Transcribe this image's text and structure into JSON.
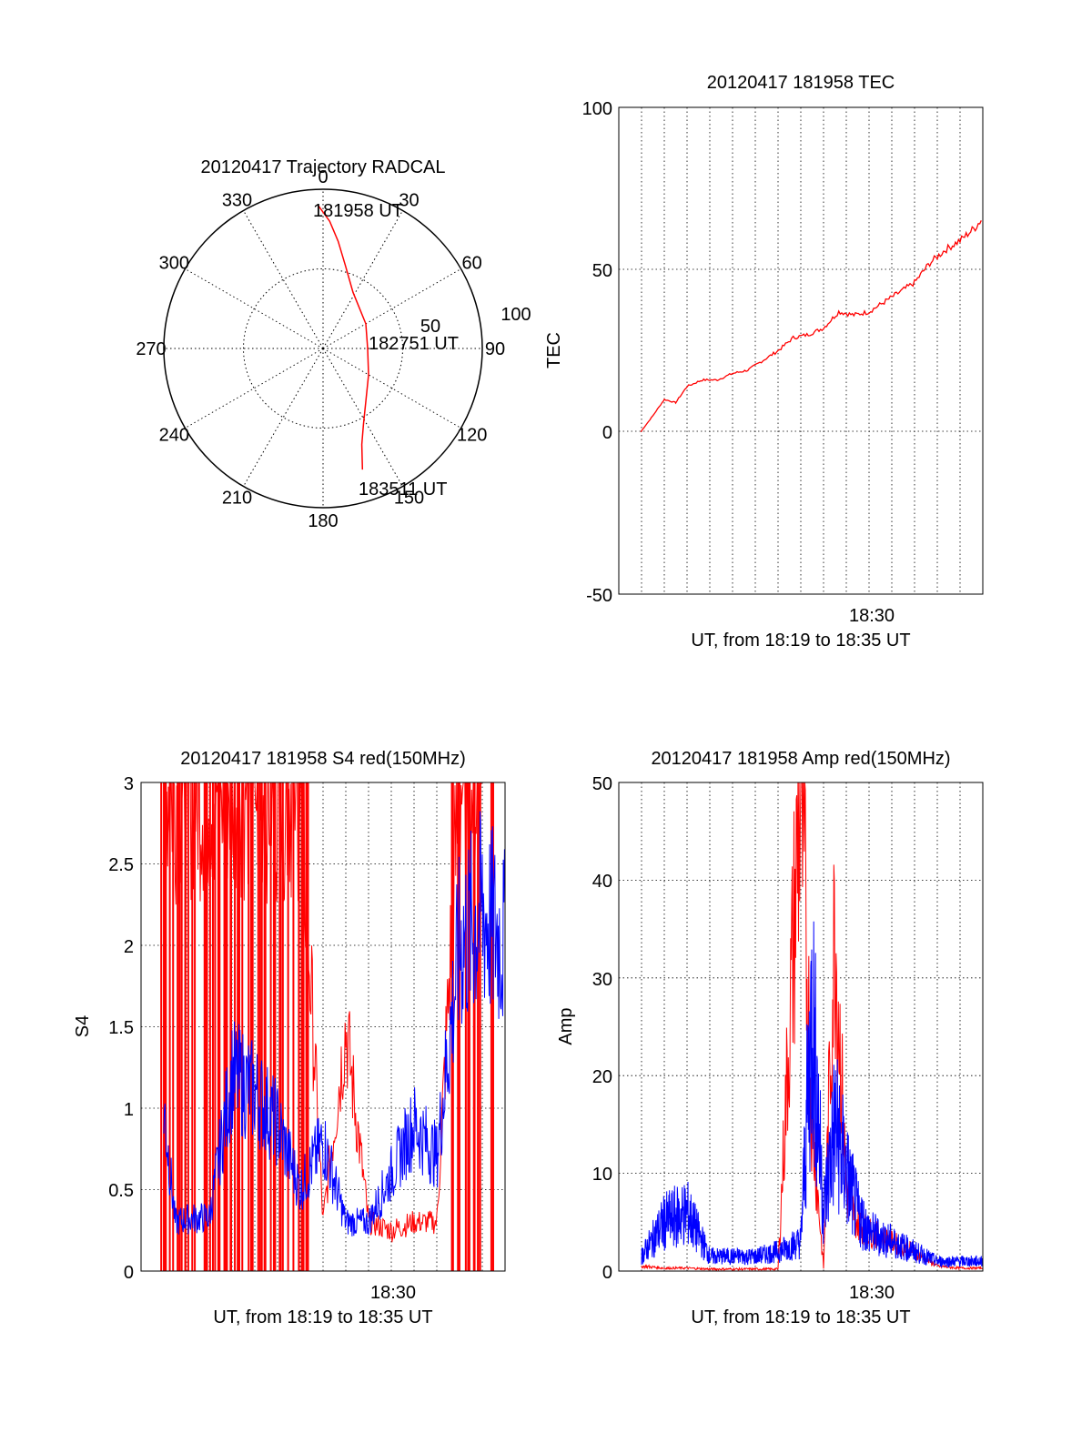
{
  "chart_data": [
    {
      "type": "polar",
      "title": "20120417 Trajectory RADCAL",
      "angle_tick_labels": [
        "0",
        "30",
        "60",
        "90",
        "120",
        "150",
        "180",
        "210",
        "240",
        "270",
        "300",
        "330"
      ],
      "radius_tick_labels": [
        "50",
        "100"
      ],
      "rlim": [
        0,
        100
      ],
      "grid": true,
      "series": [
        {
          "color": "#ff0000",
          "points": [
            {
              "az": -2,
              "r": 90
            },
            {
              "az": 3,
              "r": 80
            },
            {
              "az": 8,
              "r": 68
            },
            {
              "az": 15,
              "r": 54
            },
            {
              "az": 28,
              "r": 40
            },
            {
              "az": 60,
              "r": 31
            },
            {
              "az": 90,
              "r": 28
            },
            {
              "az": 120,
              "r": 33
            },
            {
              "az": 140,
              "r": 42
            },
            {
              "az": 152,
              "r": 54
            },
            {
              "az": 158,
              "r": 65
            },
            {
              "az": 162,
              "r": 80
            }
          ]
        }
      ],
      "annotations": [
        "181958 UT",
        "182751 UT",
        "183511 UT"
      ]
    },
    {
      "type": "line",
      "title": "20120417 181958 TEC",
      "xlabel": "UT, from 18:19 to 18:35 UT",
      "ylabel": "TEC",
      "x_tick_labels": [
        "18:30"
      ],
      "y_tick_labels": [
        "100",
        "50",
        "0",
        "-50"
      ],
      "xlim": [
        "18:19",
        "18:35"
      ],
      "ylim": [
        -50,
        100
      ],
      "grid": true,
      "series": [
        {
          "color": "#ff0000",
          "x": [
            "18:19:58",
            "18:20:30",
            "18:21:00",
            "18:21:30",
            "18:22:00",
            "18:22:40",
            "18:23:20",
            "18:24:00",
            "18:24:40",
            "18:25:20",
            "18:26:00",
            "18:26:40",
            "18:27:20",
            "18:28:00",
            "18:28:40",
            "18:29:20",
            "18:30:00",
            "18:30:40",
            "18:31:20",
            "18:32:00",
            "18:32:40",
            "18:33:20",
            "18:34:00",
            "18:34:40",
            "18:35:00"
          ],
          "y": [
            0,
            5,
            10,
            9,
            14,
            16,
            16,
            18,
            19,
            22,
            25,
            29,
            30,
            32,
            37,
            36,
            37,
            40,
            43,
            46,
            52,
            56,
            59,
            63,
            66
          ]
        }
      ]
    },
    {
      "type": "line",
      "title": "20120417 181958 S4 red(150MHz)",
      "xlabel": "UT, from 18:19 to 18:35 UT",
      "ylabel": "S4",
      "x_tick_labels": [
        "18:30"
      ],
      "y_tick_labels": [
        "3",
        "2.5",
        "2",
        "1.5",
        "1",
        "0.5",
        "0"
      ],
      "xlim": [
        "18:19",
        "18:35"
      ],
      "ylim": [
        0,
        3
      ],
      "grid": true,
      "series": [
        {
          "color": "#ff0000",
          "x": [
            "18:20:00",
            "18:21:00",
            "18:22:00",
            "18:23:00",
            "18:24:00",
            "18:25:00",
            "18:26:00",
            "18:27:00",
            "18:28:00",
            "18:29:00",
            "18:30:00",
            "18:31:00",
            "18:32:00",
            "18:33:00",
            "18:34:00"
          ],
          "y": [
            3,
            3,
            3,
            3,
            3,
            3,
            3,
            0.3,
            1.5,
            0.3,
            0.25,
            0.3,
            0.3,
            3,
            3
          ]
        },
        {
          "color": "#0000ff",
          "x": [
            "18:20:00",
            "18:20:30",
            "18:21:00",
            "18:22:00",
            "18:23:00",
            "18:24:00",
            "18:25:00",
            "18:26:00",
            "18:27:00",
            "18:28:00",
            "18:29:00",
            "18:30:00",
            "18:31:00",
            "18:32:00",
            "18:33:00",
            "18:34:00",
            "18:35:00"
          ],
          "y": [
            1.0,
            0.3,
            0.32,
            0.33,
            1.2,
            1.1,
            0.9,
            0.5,
            0.8,
            0.3,
            0.3,
            0.6,
            0.9,
            0.7,
            2.0,
            2.2,
            2.0
          ]
        }
      ]
    },
    {
      "type": "line",
      "title": "20120417 181958 Amp red(150MHz)",
      "xlabel": "UT, from 18:19 to 18:35 UT",
      "ylabel": "Amp",
      "x_tick_labels": [
        "18:30"
      ],
      "y_tick_labels": [
        "50",
        "40",
        "30",
        "20",
        "10",
        "0"
      ],
      "xlim": [
        "18:19",
        "18:35"
      ],
      "ylim": [
        0,
        50
      ],
      "grid": true,
      "series": [
        {
          "color": "#ff0000",
          "x": [
            "18:20:00",
            "18:21:00",
            "18:22:00",
            "18:23:00",
            "18:24:00",
            "18:25:00",
            "18:26:00",
            "18:27:00",
            "18:27:30",
            "18:28:00",
            "18:28:30",
            "18:29:00",
            "18:29:30",
            "18:30:00",
            "18:31:00",
            "18:32:00",
            "18:33:00",
            "18:34:00",
            "18:35:00"
          ],
          "y": [
            0.5,
            0.3,
            0.3,
            0.2,
            0.2,
            0.2,
            0.2,
            50,
            15,
            0.3,
            36,
            8,
            5,
            4,
            3,
            2,
            0.5,
            0.3,
            0.3
          ]
        },
        {
          "color": "#0000ff",
          "x": [
            "18:20:00",
            "18:21:00",
            "18:22:00",
            "18:23:00",
            "18:24:00",
            "18:25:00",
            "18:26:00",
            "18:27:00",
            "18:27:30",
            "18:28:00",
            "18:28:30",
            "18:29:00",
            "18:29:30",
            "18:30:00",
            "18:31:00",
            "18:32:00",
            "18:33:00",
            "18:34:00",
            "18:35:00"
          ],
          "y": [
            1.5,
            5,
            6,
            1.5,
            1.5,
            1.5,
            2,
            3,
            27,
            6,
            15,
            10,
            6,
            4,
            3,
            2,
            1,
            1,
            1
          ]
        }
      ]
    }
  ]
}
